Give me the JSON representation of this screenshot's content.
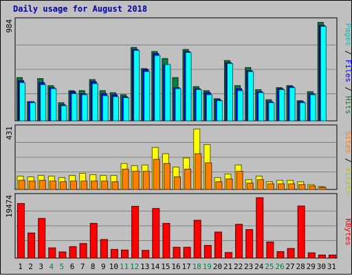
{
  "chart_data": {
    "type": "bar",
    "title": "Daily usage for August 2018",
    "categories": [
      "1",
      "2",
      "3",
      "4",
      "5",
      "6",
      "7",
      "8",
      "9",
      "10",
      "11",
      "12",
      "13",
      "14",
      "15",
      "16",
      "17",
      "18",
      "19",
      "20",
      "21",
      "22",
      "23",
      "24",
      "25",
      "26",
      "27",
      "28",
      "29",
      "30",
      "31"
    ],
    "weekend_days": [
      "4",
      "5",
      "11",
      "12",
      "18",
      "19",
      "25",
      "26"
    ],
    "panels": [
      {
        "name": "hits_files_pages",
        "ylim": [
          0,
          984
        ],
        "max_label": "984",
        "series": [
          {
            "name": "Hits",
            "color": "#008040",
            "values": [
              430,
              190,
              420,
              350,
              180,
              300,
              300,
              410,
              300,
              280,
              260,
              730,
              520,
              690,
              620,
              430,
              710,
              340,
              300,
              220,
              600,
              350,
              530,
              310,
              210,
              330,
              350,
              200,
              290,
              980,
              null
            ]
          },
          {
            "name": "Files",
            "color": "#0000ff",
            "values": [
              400,
              190,
              380,
              330,
              160,
              290,
              270,
              390,
              270,
              260,
              240,
              710,
              510,
              670,
              560,
              330,
              690,
              320,
              280,
              210,
              580,
              320,
              500,
              290,
              190,
              320,
              340,
              190,
              270,
              950,
              null
            ]
          },
          {
            "name": "Pages",
            "color": "#00ffff",
            "values": [
              380,
              180,
              360,
              320,
              150,
              270,
              260,
              370,
              250,
              240,
              230,
              700,
              490,
              650,
              560,
              320,
              680,
              310,
              260,
              200,
              570,
              300,
              490,
              280,
              180,
              310,
              330,
              180,
              260,
              940,
              null
            ]
          }
        ]
      },
      {
        "name": "sites_visits",
        "ylim": [
          0,
          431
        ],
        "max_label": "431",
        "series": [
          {
            "name": "Visits",
            "color": "#ffff00",
            "values": [
              95,
              90,
              100,
              95,
              85,
              100,
              115,
              105,
              100,
              100,
              185,
              170,
              175,
              300,
              255,
              160,
              225,
              431,
              320,
              85,
              110,
              175,
              70,
              95,
              55,
              65,
              65,
              55,
              35,
              20,
              null
            ]
          },
          {
            "name": "Sites",
            "color": "#ff8000",
            "values": [
              65,
              60,
              65,
              60,
              55,
              60,
              60,
              60,
              60,
              55,
              145,
              130,
              130,
              215,
              185,
              90,
              145,
              255,
              190,
              55,
              75,
              130,
              45,
              70,
              40,
              40,
              40,
              35,
              25,
              15,
              null
            ]
          }
        ]
      },
      {
        "name": "kbytes",
        "ylim": [
          0,
          19474
        ],
        "max_label": "19474",
        "series": [
          {
            "name": "KBytes",
            "color": "#ff0000",
            "values": [
              17600,
              8100,
              12800,
              3300,
              2000,
              3700,
              4700,
              11200,
              6000,
              2800,
              2600,
              16700,
              2500,
              16000,
              11200,
              3500,
              3500,
              12200,
              4100,
              8400,
              1800,
              10900,
              9200,
              19474,
              5200,
              2100,
              3100,
              16800,
              1700,
              1000,
              1000
            ]
          }
        ]
      }
    ],
    "right_labels": [
      {
        "parts": [
          {
            "text": "Pages",
            "color": "#00c0c0"
          },
          {
            "text": " / ",
            "color": "#000000"
          },
          {
            "text": "Files",
            "color": "#0000ff"
          },
          {
            "text": " / ",
            "color": "#000000"
          },
          {
            "text": "Hits",
            "color": "#008040"
          }
        ]
      },
      {
        "parts": [
          {
            "text": "Sites",
            "color": "#ff8000"
          },
          {
            "text": " / ",
            "color": "#000000"
          },
          {
            "text": "Visits",
            "color": "#c0c000"
          }
        ]
      },
      {
        "parts": [
          {
            "text": "KBytes",
            "color": "#ff0000"
          }
        ]
      }
    ],
    "colors": {
      "title": "#0000a0",
      "background": "#c0c0c0",
      "plot_bg": "#c0c0c0",
      "weekday_label": "#000000",
      "weekend_label": "#008040",
      "grid": "#808080"
    }
  }
}
